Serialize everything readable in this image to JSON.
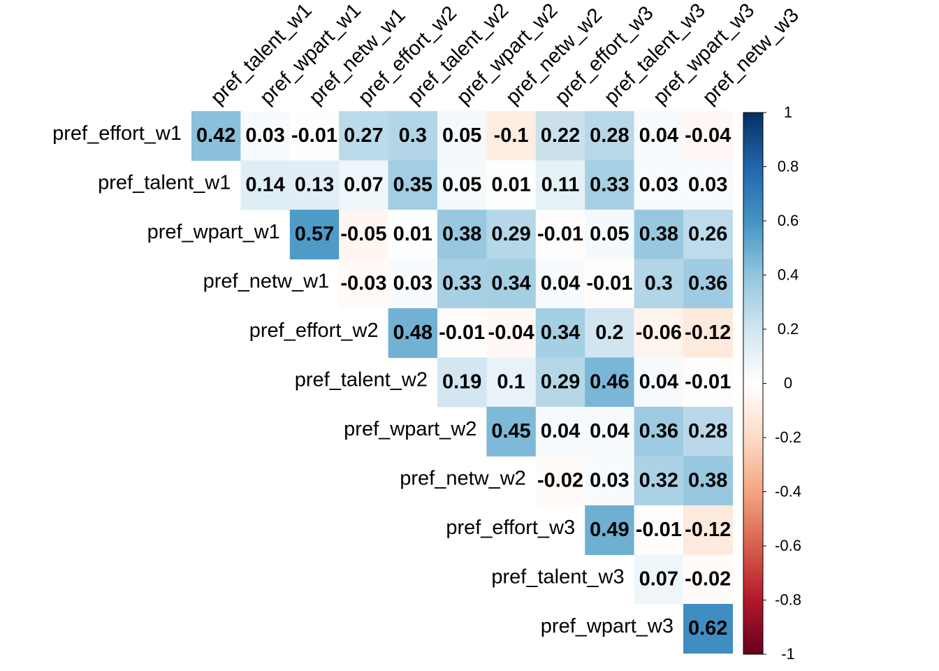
{
  "chart_data": {
    "type": "heatmap",
    "variant": "correlation-matrix-upper-triangle",
    "diagonal_shown": false,
    "row_labels": [
      "pref_effort_w1",
      "pref_talent_w1",
      "pref_wpart_w1",
      "pref_netw_w1",
      "pref_effort_w2",
      "pref_talent_w2",
      "pref_wpart_w2",
      "pref_netw_w2",
      "pref_effort_w3",
      "pref_talent_w3",
      "pref_wpart_w3"
    ],
    "column_labels": [
      "pref_talent_w1",
      "pref_wpart_w1",
      "pref_netw_w1",
      "pref_effort_w2",
      "pref_talent_w2",
      "pref_wpart_w2",
      "pref_netw_w2",
      "pref_effort_w3",
      "pref_talent_w3",
      "pref_wpart_w3",
      "pref_netw_w3"
    ],
    "values": [
      [
        0.42,
        0.03,
        -0.01,
        0.27,
        0.3,
        0.05,
        -0.1,
        0.22,
        0.28,
        0.04,
        -0.04
      ],
      [
        null,
        0.14,
        0.13,
        0.07,
        0.35,
        0.05,
        0.01,
        0.11,
        0.33,
        0.03,
        0.03
      ],
      [
        null,
        null,
        0.57,
        -0.05,
        0.01,
        0.38,
        0.29,
        -0.01,
        0.05,
        0.38,
        0.26
      ],
      [
        null,
        null,
        null,
        -0.03,
        0.03,
        0.33,
        0.34,
        0.04,
        -0.01,
        0.3,
        0.36
      ],
      [
        null,
        null,
        null,
        null,
        0.48,
        -0.01,
        -0.04,
        0.34,
        0.2,
        -0.06,
        -0.12
      ],
      [
        null,
        null,
        null,
        null,
        null,
        0.19,
        0.1,
        0.29,
        0.46,
        0.04,
        -0.01
      ],
      [
        null,
        null,
        null,
        null,
        null,
        null,
        0.45,
        0.04,
        0.04,
        0.36,
        0.28
      ],
      [
        null,
        null,
        null,
        null,
        null,
        null,
        null,
        -0.02,
        0.03,
        0.32,
        0.38
      ],
      [
        null,
        null,
        null,
        null,
        null,
        null,
        null,
        null,
        0.49,
        -0.01,
        -0.12
      ],
      [
        null,
        null,
        null,
        null,
        null,
        null,
        null,
        null,
        null,
        0.07,
        -0.02
      ],
      [
        null,
        null,
        null,
        null,
        null,
        null,
        null,
        null,
        null,
        null,
        0.62
      ]
    ],
    "value_labels": [
      [
        "0.42",
        "0.03",
        "-0.01",
        "0.27",
        "0.3",
        "0.05",
        "-0.1",
        "0.22",
        "0.28",
        "0.04",
        "-0.04"
      ],
      [
        null,
        "0.14",
        "0.13",
        "0.07",
        "0.35",
        "0.05",
        "0.01",
        "0.11",
        "0.33",
        "0.03",
        "0.03"
      ],
      [
        null,
        null,
        "0.57",
        "-0.05",
        "0.01",
        "0.38",
        "0.29",
        "-0.01",
        "0.05",
        "0.38",
        "0.26"
      ],
      [
        null,
        null,
        null,
        "-0.03",
        "0.03",
        "0.33",
        "0.34",
        "0.04",
        "-0.01",
        "0.3",
        "0.36"
      ],
      [
        null,
        null,
        null,
        null,
        "0.48",
        "-0.01",
        "-0.04",
        "0.34",
        "0.2",
        "-0.06",
        "-0.12"
      ],
      [
        null,
        null,
        null,
        null,
        null,
        "0.19",
        "0.1",
        "0.29",
        "0.46",
        "0.04",
        "-0.01"
      ],
      [
        null,
        null,
        null,
        null,
        null,
        null,
        "0.45",
        "0.04",
        "0.04",
        "0.36",
        "0.28"
      ],
      [
        null,
        null,
        null,
        null,
        null,
        null,
        null,
        "-0.02",
        "0.03",
        "0.32",
        "0.38"
      ],
      [
        null,
        null,
        null,
        null,
        null,
        null,
        null,
        null,
        "0.49",
        "-0.01",
        "-0.12"
      ],
      [
        null,
        null,
        null,
        null,
        null,
        null,
        null,
        null,
        null,
        "0.07",
        "-0.02"
      ],
      [
        null,
        null,
        null,
        null,
        null,
        null,
        null,
        null,
        null,
        null,
        "0.62"
      ]
    ],
    "color_scale": {
      "range": [
        -1,
        1
      ],
      "ticks": [
        1,
        0.8,
        0.6,
        0.4,
        0.2,
        0,
        -0.2,
        -0.4,
        -0.6,
        -0.8,
        -1
      ],
      "tick_labels": [
        "1",
        "0.8",
        "0.6",
        "0.4",
        "0.2",
        "0",
        "-0.2",
        "-0.4",
        "-0.6",
        "-0.8",
        "-1"
      ],
      "palette": [
        "#67001F",
        "#B2182B",
        "#D6604D",
        "#F4A582",
        "#FDDBC7",
        "#FFFFFF",
        "#D1E5F0",
        "#92C5DE",
        "#4393C3",
        "#2166AC",
        "#053061"
      ]
    },
    "legend_placement": "right",
    "title": "",
    "xlabel": "",
    "ylabel": "",
    "grid": false
  }
}
